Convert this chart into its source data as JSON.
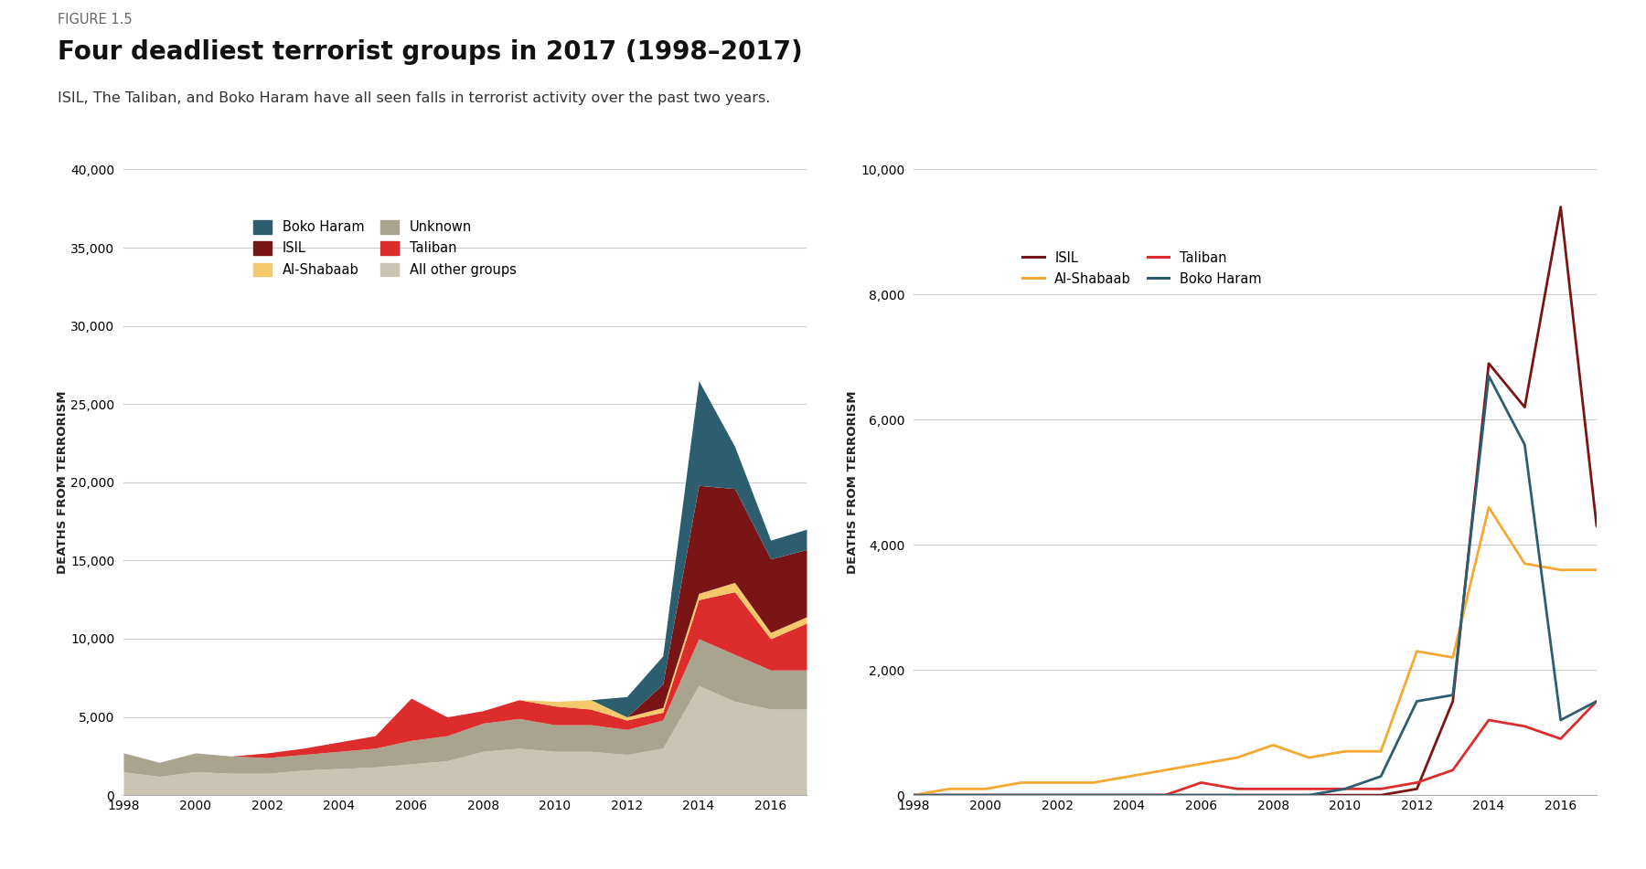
{
  "years": [
    1998,
    1999,
    2000,
    2001,
    2002,
    2003,
    2004,
    2005,
    2006,
    2007,
    2008,
    2009,
    2010,
    2011,
    2012,
    2013,
    2014,
    2015,
    2016,
    2017
  ],
  "stacked": {
    "all_other_groups": [
      1500,
      1200,
      1500,
      1400,
      1400,
      1600,
      1700,
      1800,
      2000,
      2200,
      2800,
      3000,
      2800,
      2800,
      2600,
      3000,
      7000,
      6000,
      5500,
      5500
    ],
    "unknown": [
      1200,
      900,
      1200,
      1100,
      1000,
      1000,
      1100,
      1200,
      1500,
      1600,
      1800,
      1900,
      1700,
      1700,
      1600,
      1800,
      3000,
      3000,
      2500,
      2500
    ],
    "taliban": [
      0,
      0,
      0,
      0,
      300,
      400,
      600,
      800,
      2700,
      1200,
      800,
      1200,
      1200,
      1000,
      600,
      500,
      2500,
      4000,
      2000,
      3000
    ],
    "al_shabaab": [
      0,
      0,
      0,
      0,
      0,
      0,
      0,
      0,
      0,
      0,
      0,
      0,
      300,
      600,
      200,
      300,
      400,
      600,
      400,
      400
    ],
    "isil": [
      0,
      0,
      0,
      0,
      0,
      0,
      0,
      0,
      0,
      0,
      0,
      0,
      0,
      0,
      0,
      1500,
      6900,
      6000,
      4700,
      4300
    ],
    "boko_haram": [
      0,
      0,
      0,
      0,
      0,
      0,
      0,
      0,
      0,
      0,
      0,
      0,
      0,
      0,
      1300,
      1800,
      6700,
      2700,
      1200,
      1300
    ]
  },
  "line": {
    "isil": [
      0,
      0,
      0,
      0,
      0,
      0,
      0,
      0,
      0,
      0,
      0,
      0,
      0,
      0,
      100,
      1500,
      6900,
      6200,
      9400,
      4300
    ],
    "taliban": [
      0,
      0,
      0,
      0,
      0,
      0,
      0,
      0,
      200,
      100,
      100,
      100,
      100,
      100,
      200,
      400,
      1200,
      1100,
      900,
      1500
    ],
    "al_shabaab": [
      0,
      100,
      100,
      200,
      200,
      200,
      300,
      400,
      500,
      600,
      800,
      600,
      700,
      700,
      2300,
      2200,
      4600,
      3700,
      3600,
      3600
    ],
    "boko_haram": [
      0,
      0,
      0,
      0,
      0,
      0,
      0,
      0,
      0,
      0,
      0,
      0,
      100,
      300,
      1500,
      1600,
      6700,
      5600,
      1200,
      1500
    ]
  },
  "colors": {
    "all_other_groups": "#c9c5b2",
    "unknown": "#a8a48e",
    "taliban": "#dc2c2c",
    "al_shabaab": "#f5c96b",
    "isil": "#7a1515",
    "boko_haram": "#2d5e70",
    "line_isil": "#7a1515",
    "line_taliban": "#dc2c2c",
    "line_al_shabaab": "#f5a832",
    "line_boko_haram": "#2d5e70"
  },
  "figure_label": "FIGURE 1.5",
  "title": "Four deadliest terrorist groups in 2017 (1998–2017)",
  "subtitle": "ISIL, The Taliban, and Boko Haram have all seen falls in terrorist activity over the past two years.",
  "ylabel": "DEATHS FROM TERRORISM",
  "left_ylim": [
    0,
    40000
  ],
  "right_ylim": [
    0,
    10000
  ],
  "left_yticks": [
    0,
    5000,
    10000,
    15000,
    20000,
    25000,
    30000,
    35000,
    40000
  ],
  "right_yticks": [
    0,
    2000,
    4000,
    6000,
    8000,
    10000
  ],
  "bg_color": "#ffffff"
}
